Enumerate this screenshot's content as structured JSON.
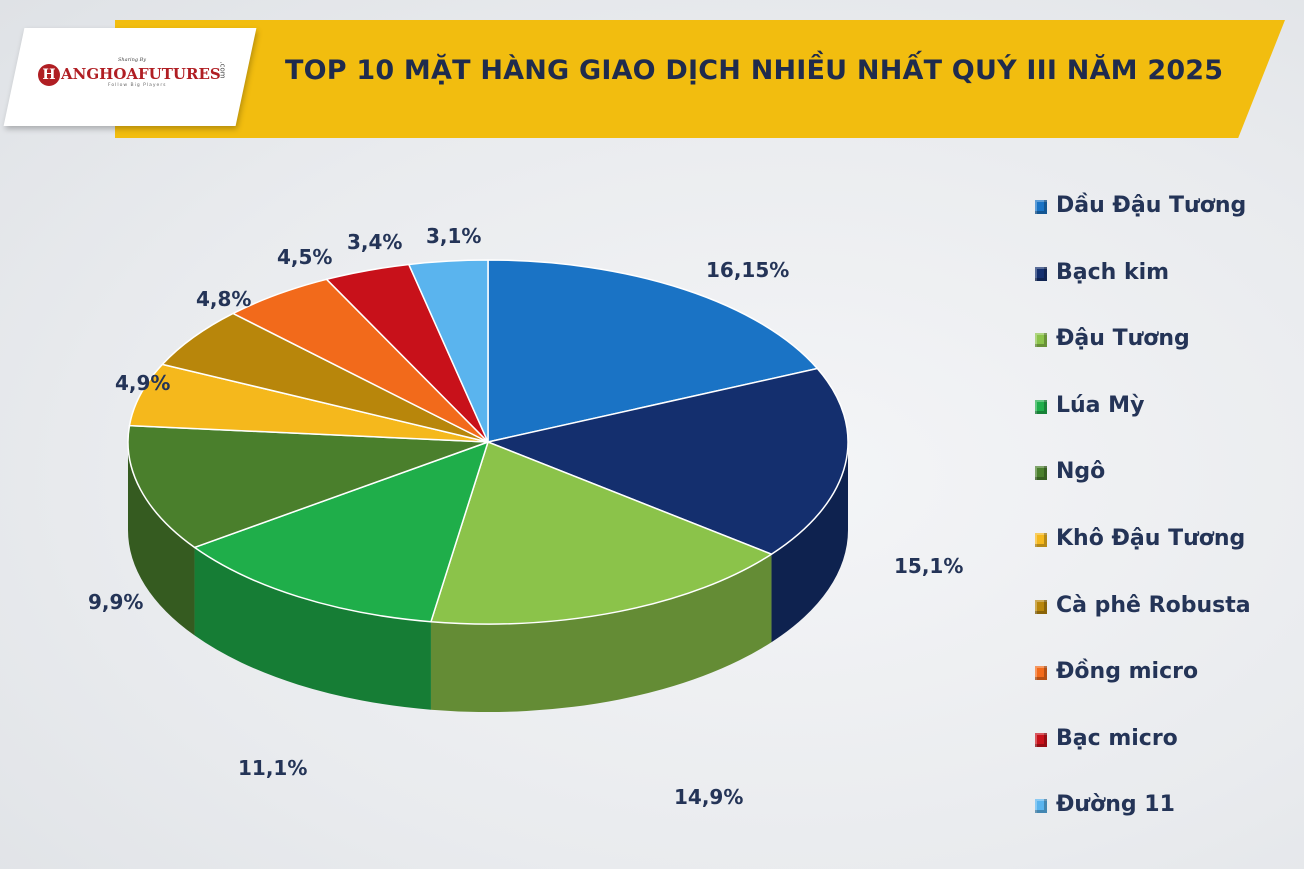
{
  "header": {
    "title": "TOP 10 MẶT HÀNG GIAO DỊCH NHIỀU NHẤT QUÝ III NĂM 2025"
  },
  "logo": {
    "sharing": "Sharing By",
    "initial": "H",
    "brand": "ANGHOAFUTURES",
    "tagline": "Follow Big Players",
    "suffix": ".com"
  },
  "chart_data": {
    "type": "pie",
    "title": "TOP 10 MẶT HÀNG GIAO DỊCH NHIỀU NHẤT QUÝ III NĂM 2025",
    "legend_position": "right",
    "slices": [
      {
        "name": "Dầu Đậu Tương",
        "value": 16.15,
        "label": "16,15%",
        "color": "#1a73c5"
      },
      {
        "name": "Bạch kim",
        "value": 15.1,
        "label": "15,1%",
        "color": "#142f6e"
      },
      {
        "name": "Đậu Tương",
        "value": 14.9,
        "label": "14,9%",
        "color": "#8bc34a"
      },
      {
        "name": "Lúa Mỳ",
        "value": 11.1,
        "label": "11,1%",
        "color": "#1fae4a"
      },
      {
        "name": "Ngô",
        "value": 9.9,
        "label": "9,9%",
        "color": "#4a7f2c"
      },
      {
        "name": "Khô Đậu Tương",
        "value": 4.9,
        "label": "4,9%",
        "color": "#f5b81c"
      },
      {
        "name": "Cà phê Robusta",
        "value": 4.8,
        "label": "4,8%",
        "color": "#b8860b"
      },
      {
        "name": "Đồng micro",
        "value": 4.5,
        "label": "4,5%",
        "color": "#f26a1b"
      },
      {
        "name": "Bạc micro",
        "value": 3.4,
        "label": "3,4%",
        "color": "#c8111a"
      },
      {
        "name": "Đường 11",
        "value": 3.1,
        "label": "3,1%",
        "color": "#5ab4ee"
      }
    ]
  }
}
